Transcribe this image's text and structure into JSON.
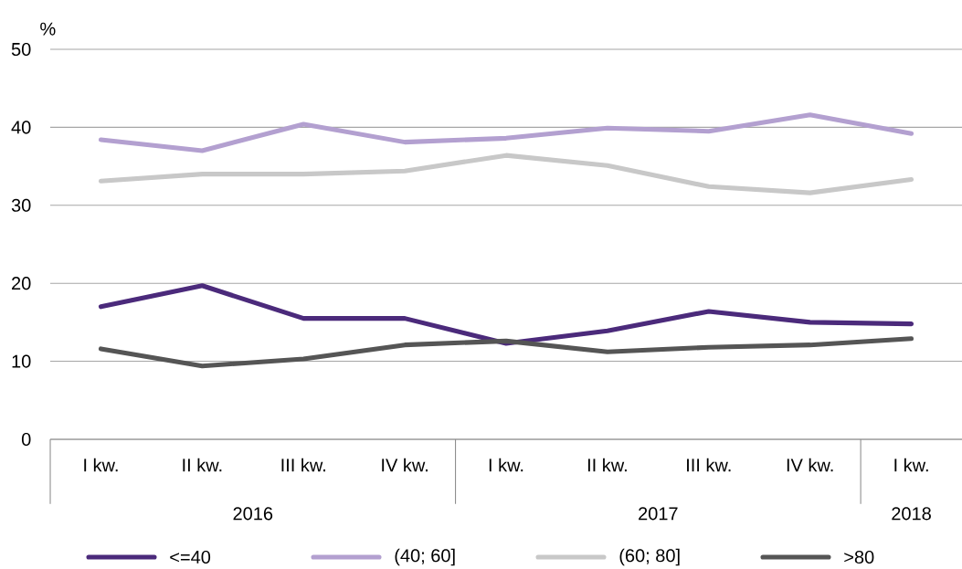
{
  "chart_data": {
    "type": "line",
    "ylabel": "%",
    "categories": [
      "I kw.",
      "II kw.",
      "III kw.",
      "IV kw.",
      "I kw.",
      "II kw.",
      "III kw.",
      "IV kw.",
      "I kw."
    ],
    "series": [
      {
        "name": "<=40",
        "color": "#4b2a7b",
        "values": [
          17.0,
          19.7,
          15.5,
          15.5,
          12.3,
          13.9,
          16.4,
          15.0,
          14.8
        ]
      },
      {
        "name": "(40; 60]",
        "color": "#b3a0d0",
        "values": [
          38.4,
          37.0,
          40.4,
          38.1,
          38.6,
          39.9,
          39.5,
          41.6,
          39.2
        ]
      },
      {
        "name": "(60; 80]",
        "color": "#c8c8c8",
        "values": [
          33.1,
          34.0,
          34.0,
          34.4,
          36.4,
          35.1,
          32.4,
          31.6,
          33.3
        ]
      },
      {
        "name": ">80",
        "color": "#555555",
        "values": [
          11.6,
          9.4,
          10.3,
          12.1,
          12.6,
          11.2,
          11.8,
          12.1,
          12.9
        ]
      }
    ],
    "ylim": [
      0,
      50
    ],
    "yticks": [
      0,
      10,
      20,
      30,
      40,
      50
    ],
    "grid": "y",
    "legend": "bottom",
    "annotations": [
      "2016",
      "2017",
      "2018"
    ]
  }
}
